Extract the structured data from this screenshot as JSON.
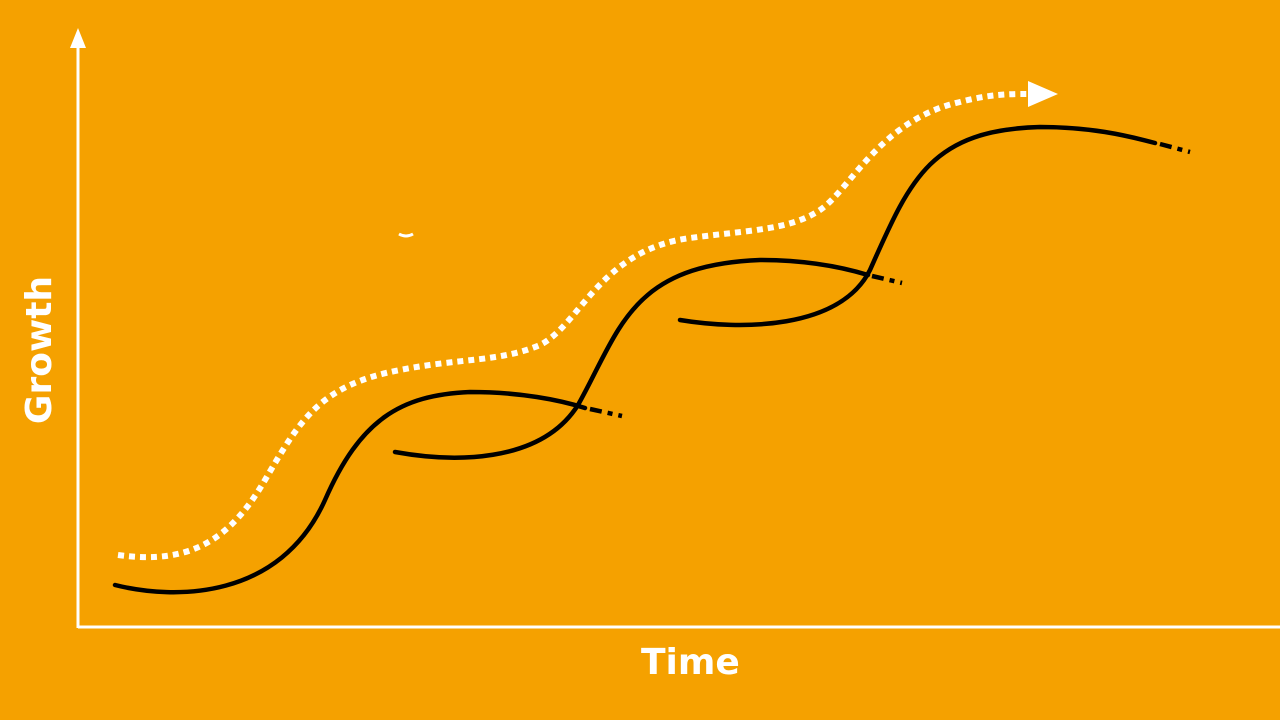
{
  "diagram": {
    "type": "successive-s-curves",
    "background_color": "#f5a100",
    "axis_color": "#ffffff",
    "curve_color": "#000000",
    "trend_color": "#ffffff",
    "x_axis_label": "Time",
    "y_axis_label": "Growth",
    "curve_count": 3,
    "trend_line_style": "dotted-with-arrow"
  }
}
